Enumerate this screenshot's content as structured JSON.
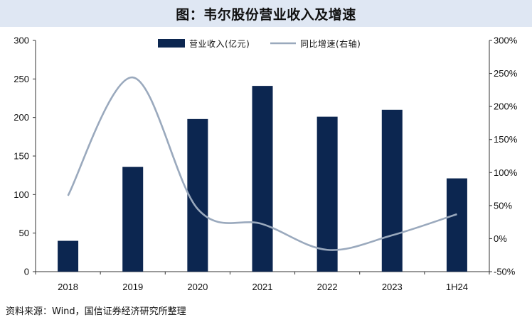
{
  "header": {
    "title": "图：韦尔股份营业收入及增速"
  },
  "footer": {
    "source": "资料来源：Wind，国信证券经济研究所整理"
  },
  "chart_data": {
    "type": "bar",
    "categories": [
      "2018",
      "2019",
      "2020",
      "2021",
      "2022",
      "2023",
      "1H24"
    ],
    "series": [
      {
        "name": "营业收入(亿元)",
        "type": "bar",
        "axis": "left",
        "color": "#0c2650",
        "values": [
          40,
          136,
          198,
          241,
          201,
          210,
          121
        ]
      },
      {
        "name": "同比增速(右轴)",
        "type": "line",
        "axis": "right",
        "color": "#9aa9bd",
        "values": [
          0.65,
          2.44,
          0.45,
          0.22,
          -0.17,
          0.05,
          0.37
        ]
      }
    ],
    "left_axis": {
      "min": 0,
      "max": 300,
      "ticks": [
        0,
        50,
        100,
        150,
        200,
        250,
        300
      ],
      "tick_labels": [
        "0",
        "50",
        "100",
        "150",
        "200",
        "250",
        "300"
      ]
    },
    "right_axis": {
      "min": -0.5,
      "max": 3.0,
      "ticks": [
        -0.5,
        0,
        0.5,
        1.0,
        1.5,
        2.0,
        2.5,
        3.0
      ],
      "tick_labels": [
        "-50%",
        "0%",
        "50%",
        "100%",
        "150%",
        "200%",
        "250%",
        "300%"
      ]
    },
    "legend_position": "top-center",
    "grid": false
  }
}
